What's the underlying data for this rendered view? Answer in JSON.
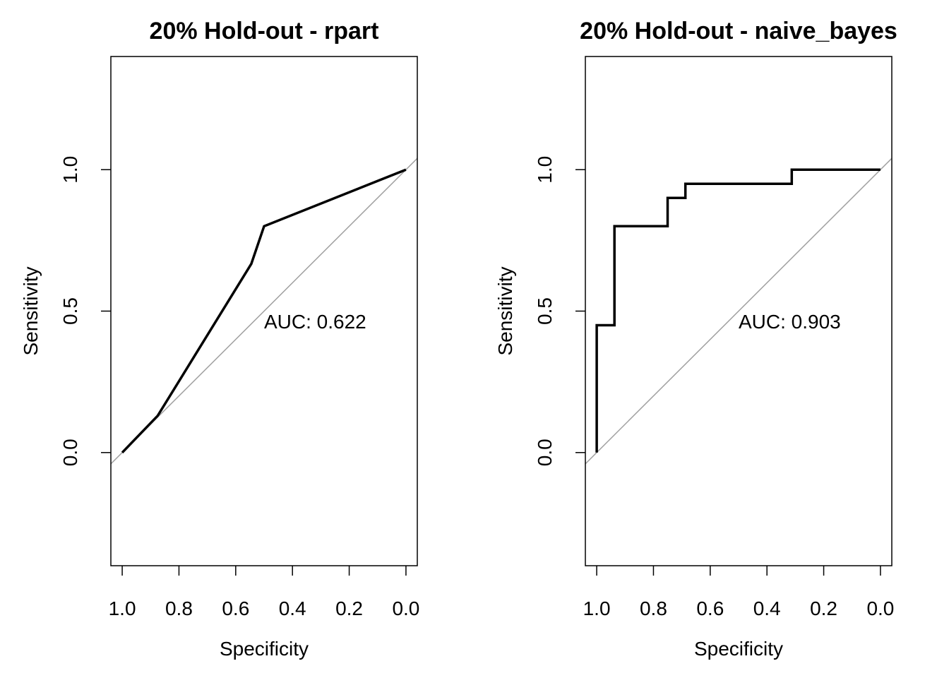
{
  "chart_data": [
    {
      "type": "line",
      "title": "20% Hold-out - rpart",
      "xlabel": "Specificity",
      "ylabel": "Sensitivity",
      "x_reversed": true,
      "xlim": [
        1.04,
        -0.04
      ],
      "ylim": [
        -0.4,
        1.4
      ],
      "xticks": [
        1.0,
        0.8,
        0.6,
        0.4,
        0.2,
        0.0
      ],
      "xtick_labels": [
        "1.0",
        "0.8",
        "0.6",
        "0.4",
        "0.2",
        "0.0"
      ],
      "yticks": [
        0.0,
        0.5,
        1.0
      ],
      "ytick_labels": [
        "0.0",
        "0.5",
        "1.0"
      ],
      "annotation": "AUC: 0.622",
      "grid": false,
      "series": [
        {
          "specificity": [
            1.0,
            0.875,
            0.545,
            0.5,
            0.0
          ],
          "sensitivity": [
            0.0,
            0.13,
            0.667,
            0.8,
            1.0
          ],
          "color": "#000000"
        }
      ],
      "reference_line_color": "#a0a0a0"
    },
    {
      "type": "line",
      "title": "20% Hold-out - naive_bayes",
      "xlabel": "Specificity",
      "ylabel": "Sensitivity",
      "x_reversed": true,
      "xlim": [
        1.04,
        -0.04
      ],
      "ylim": [
        -0.4,
        1.4
      ],
      "xticks": [
        1.0,
        0.8,
        0.6,
        0.4,
        0.2,
        0.0
      ],
      "xtick_labels": [
        "1.0",
        "0.8",
        "0.6",
        "0.4",
        "0.2",
        "0.0"
      ],
      "yticks": [
        0.0,
        0.5,
        1.0
      ],
      "ytick_labels": [
        "0.0",
        "0.5",
        "1.0"
      ],
      "annotation": "AUC: 0.903",
      "grid": false,
      "series": [
        {
          "specificity": [
            1.0,
            1.0,
            0.9375,
            0.9375,
            0.75,
            0.75,
            0.6875,
            0.6875,
            0.3125,
            0.3125,
            0.0
          ],
          "sensitivity": [
            0.0,
            0.45,
            0.45,
            0.8,
            0.8,
            0.9,
            0.9,
            0.95,
            0.95,
            1.0,
            1.0
          ],
          "color": "#000000"
        }
      ],
      "reference_line_color": "#a0a0a0"
    }
  ]
}
